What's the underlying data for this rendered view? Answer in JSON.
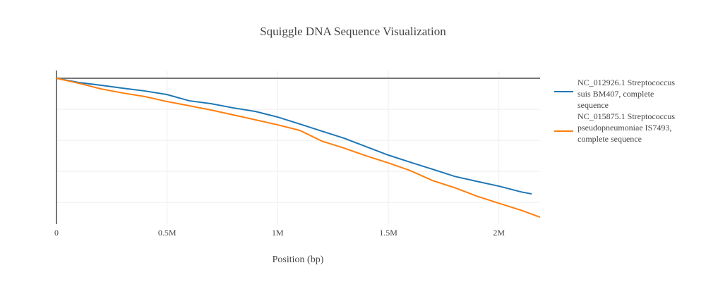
{
  "chart_data": {
    "type": "line",
    "title": "Squiggle DNA Sequence Visualization",
    "x_label": "Position (bp)",
    "series": [
      {
        "name": "NC_012926.1 Streptococcus suis BM407, complete sequence",
        "color": "#1f77b4",
        "x": [
          0,
          100000,
          200000,
          300000,
          400000,
          500000,
          600000,
          700000,
          800000,
          900000,
          1000000,
          1100000,
          1200000,
          1300000,
          1400000,
          1500000,
          1600000,
          1700000,
          1800000,
          1900000,
          2000000,
          2100000,
          2148000
        ],
        "values": [
          0,
          -2700,
          -4500,
          -6400,
          -8200,
          -10500,
          -14500,
          -16400,
          -19100,
          -21400,
          -25000,
          -29500,
          -34100,
          -38600,
          -44100,
          -49500,
          -54100,
          -58600,
          -63200,
          -66400,
          -69500,
          -73200,
          -74500
        ]
      },
      {
        "name": "NC_015875.1 Streptococcus pseudopneumoniae IS7493, complete sequence",
        "color": "#ff7f0e",
        "x": [
          0,
          100000,
          200000,
          300000,
          400000,
          500000,
          600000,
          700000,
          800000,
          900000,
          1000000,
          1100000,
          1200000,
          1300000,
          1400000,
          1500000,
          1600000,
          1700000,
          1800000,
          1900000,
          2000000,
          2100000,
          2186000
        ],
        "values": [
          0,
          -3200,
          -6800,
          -9500,
          -11800,
          -15000,
          -17700,
          -20500,
          -23600,
          -26800,
          -30000,
          -33600,
          -40500,
          -45000,
          -50000,
          -54500,
          -59500,
          -65900,
          -70500,
          -75900,
          -80500,
          -85000,
          -89500
        ]
      }
    ],
    "xlim": [
      0,
      2186000
    ],
    "xticks": [
      0,
      {
        "value": 500000,
        "label": "0.5M"
      },
      {
        "value": 1000000,
        "label": "1M"
      },
      {
        "value": 1500000,
        "label": "1.5M"
      },
      {
        "value": 2000000,
        "label": "2M"
      }
    ],
    "ylim": [
      -94000,
      5000
    ],
    "yticks": [
      -80000,
      -60000,
      -40000,
      -20000,
      0
    ],
    "show_ytick_labels": false,
    "zeroline": true,
    "grid": true,
    "legend_position": "right"
  }
}
